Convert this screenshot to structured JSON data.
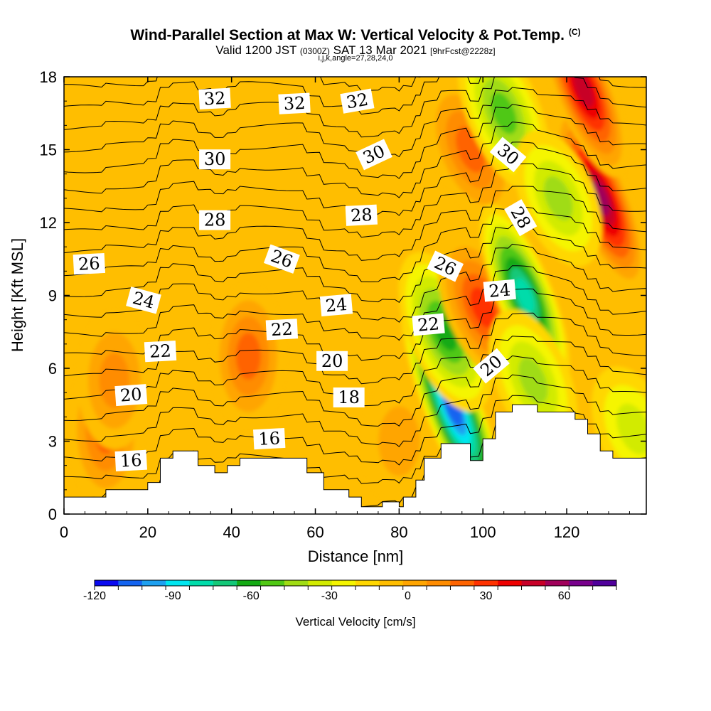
{
  "header": {
    "title": "Wind-Parallel Section at Max W: Vertical Velocity & Pot.Temp.",
    "copyright": "(C)",
    "valid_prefix": "Valid 1200 JST",
    "valid_utc": "(0300Z)",
    "valid_date": "SAT 13 Mar 2021",
    "forecast": "[9hrFcst@2228z]",
    "indices": "i,j,k,angle=27,28,24,0"
  },
  "chart_data": {
    "type": "heatmap",
    "xlabel": "Distance [nm]",
    "ylabel": "Height [Kft MSL]",
    "xlim": [
      0,
      139
    ],
    "ylim": [
      0,
      18
    ],
    "xticks": [
      0,
      20,
      40,
      60,
      80,
      100,
      120
    ],
    "yticks": [
      0,
      3,
      6,
      9,
      12,
      15,
      18
    ],
    "colorbar": {
      "label": "Vertical Velocity [cm/s]",
      "min": -120,
      "max": 80,
      "step": 10,
      "ticks": [
        -120,
        -90,
        -60,
        -30,
        0,
        30,
        60
      ],
      "colors": [
        "#0a0af0",
        "#1464f0",
        "#1ea0f0",
        "#00e6f0",
        "#00dcaa",
        "#14c878",
        "#14aa14",
        "#50c814",
        "#a0dc14",
        "#d2eb00",
        "#f5f500",
        "#ffd700",
        "#ffbe00",
        "#ffa500",
        "#ff8c00",
        "#ff6400",
        "#ff3200",
        "#ee0000",
        "#c80028",
        "#a0005a",
        "#78008c",
        "#50009b"
      ]
    },
    "velocity_features": [
      {
        "x": 10,
        "y": 3.5,
        "w_cm_s": 42
      },
      {
        "x": 12,
        "y": 5.5,
        "w_cm_s": 30
      },
      {
        "x": 44,
        "y": 6.5,
        "w_cm_s": 35
      },
      {
        "x": 80,
        "y": 3.0,
        "w_cm_s": 20
      },
      {
        "x": 93,
        "y": 4.3,
        "w_cm_s": -110
      },
      {
        "x": 91,
        "y": 7.5,
        "w_cm_s": -55
      },
      {
        "x": 100,
        "y": 8.5,
        "w_cm_s": 45
      },
      {
        "x": 97,
        "y": 15.0,
        "w_cm_s": 40
      },
      {
        "x": 110,
        "y": 9.0,
        "w_cm_s": -75
      },
      {
        "x": 105,
        "y": 16.5,
        "w_cm_s": -50
      },
      {
        "x": 112,
        "y": 5.5,
        "w_cm_s": -40
      },
      {
        "x": 128,
        "y": 13.0,
        "w_cm_s": 75
      },
      {
        "x": 124,
        "y": 17.5,
        "w_cm_s": 70
      },
      {
        "x": 118,
        "y": 13.0,
        "w_cm_s": -35
      },
      {
        "x": 136,
        "y": 3.5,
        "w_cm_s": -25
      }
    ],
    "terrain_kft": [
      [
        0,
        0.7
      ],
      [
        10,
        0.7
      ],
      [
        10,
        1.0
      ],
      [
        20,
        1.0
      ],
      [
        20,
        1.3
      ],
      [
        23,
        1.3
      ],
      [
        23,
        2.3
      ],
      [
        26,
        2.3
      ],
      [
        26,
        2.6
      ],
      [
        32,
        2.6
      ],
      [
        32,
        2.0
      ],
      [
        36,
        2.0
      ],
      [
        36,
        1.7
      ],
      [
        39,
        1.7
      ],
      [
        39,
        2.0
      ],
      [
        42,
        2.0
      ],
      [
        42,
        2.3
      ],
      [
        58,
        2.3
      ],
      [
        58,
        1.7
      ],
      [
        62,
        1.7
      ],
      [
        62,
        1.0
      ],
      [
        68,
        1.0
      ],
      [
        68,
        0.7
      ],
      [
        71,
        0.7
      ],
      [
        71,
        0.3
      ],
      [
        76,
        0.3
      ],
      [
        76,
        0.5
      ],
      [
        80,
        0.5
      ],
      [
        80,
        0.3
      ],
      [
        81,
        0.3
      ],
      [
        81,
        0.7
      ],
      [
        84,
        0.7
      ],
      [
        84,
        1.4
      ],
      [
        86,
        1.4
      ],
      [
        86,
        2.3
      ],
      [
        90,
        2.3
      ],
      [
        90,
        2.9
      ],
      [
        97,
        2.9
      ],
      [
        97,
        2.2
      ],
      [
        100,
        2.2
      ],
      [
        100,
        3.1
      ],
      [
        103,
        3.1
      ],
      [
        103,
        4.2
      ],
      [
        107,
        4.2
      ],
      [
        107,
        4.5
      ],
      [
        113,
        4.5
      ],
      [
        113,
        4.2
      ],
      [
        122,
        4.2
      ],
      [
        122,
        3.9
      ],
      [
        125,
        3.9
      ],
      [
        125,
        3.3
      ],
      [
        128,
        3.3
      ],
      [
        128,
        2.6
      ],
      [
        131,
        2.6
      ],
      [
        131,
        2.3
      ],
      [
        139,
        2.3
      ]
    ],
    "theta_labels": [
      {
        "text": "16",
        "x": 16,
        "y": 2.2,
        "angle": -3
      },
      {
        "text": "16",
        "x": 49,
        "y": 3.1,
        "angle": -3
      },
      {
        "text": "18",
        "x": 68,
        "y": 4.8,
        "angle": 0
      },
      {
        "text": "20",
        "x": 16,
        "y": 4.9,
        "angle": -4
      },
      {
        "text": "20",
        "x": 64,
        "y": 6.3,
        "angle": 0
      },
      {
        "text": "20",
        "x": 102,
        "y": 6.1,
        "angle": -40
      },
      {
        "text": "22",
        "x": 23,
        "y": 6.7,
        "angle": -3
      },
      {
        "text": "22",
        "x": 52,
        "y": 7.6,
        "angle": -3
      },
      {
        "text": "22",
        "x": 87,
        "y": 7.8,
        "angle": -5
      },
      {
        "text": "24",
        "x": 19,
        "y": 8.8,
        "angle": 15
      },
      {
        "text": "24",
        "x": 65,
        "y": 8.6,
        "angle": -5
      },
      {
        "text": "24",
        "x": 104,
        "y": 9.2,
        "angle": -5
      },
      {
        "text": "26",
        "x": 6,
        "y": 10.3,
        "angle": -3
      },
      {
        "text": "26",
        "x": 52,
        "y": 10.5,
        "angle": 20
      },
      {
        "text": "26",
        "x": 91,
        "y": 10.2,
        "angle": 25
      },
      {
        "text": "28",
        "x": 36,
        "y": 12.1,
        "angle": 0
      },
      {
        "text": "28",
        "x": 71,
        "y": 12.3,
        "angle": -3
      },
      {
        "text": "28",
        "x": 109,
        "y": 12.2,
        "angle": 60
      },
      {
        "text": "30",
        "x": 36,
        "y": 14.6,
        "angle": 0
      },
      {
        "text": "30",
        "x": 74,
        "y": 14.8,
        "angle": -25
      },
      {
        "text": "30",
        "x": 106,
        "y": 14.8,
        "angle": 40
      },
      {
        "text": "32",
        "x": 36,
        "y": 17.1,
        "angle": -3
      },
      {
        "text": "32",
        "x": 55,
        "y": 16.9,
        "angle": -3
      },
      {
        "text": "32",
        "x": 70,
        "y": 17.0,
        "angle": -10
      }
    ]
  }
}
